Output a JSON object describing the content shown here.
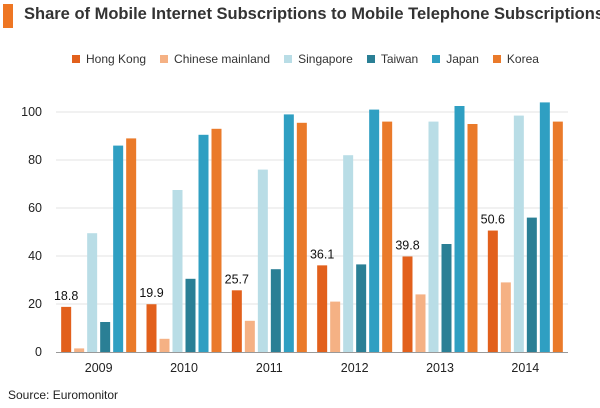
{
  "title": "Share of Mobile Internet Subscriptions to Mobile Telephone Subscriptions",
  "source": "Source: Euromonitor",
  "title_accent_color": "#ee7623",
  "chart_data": {
    "type": "bar",
    "title": "Share of Mobile Internet Subscriptions to Mobile Telephone Subscriptions",
    "categories": [
      "2009",
      "2010",
      "2011",
      "2012",
      "2013",
      "2014"
    ],
    "ylim": [
      0,
      110
    ],
    "yticks": [
      0,
      20,
      40,
      60,
      80,
      100
    ],
    "grid": "horizontal",
    "legend_position": "top",
    "series": [
      {
        "name": "Hong Kong",
        "color": "#e2601c",
        "values": [
          18.8,
          19.9,
          25.7,
          36.1,
          39.8,
          50.6
        ],
        "labels": [
          "18.8",
          "19.9",
          "25.7",
          "36.1",
          "39.8",
          "50.6"
        ]
      },
      {
        "name": "Chinese mainland",
        "color": "#f5b184",
        "values": [
          1.5,
          5.5,
          13,
          21,
          24,
          29
        ]
      },
      {
        "name": "Singapore",
        "color": "#b9dde6",
        "values": [
          49.5,
          67.5,
          76,
          82,
          96,
          98.5
        ]
      },
      {
        "name": "Taiwan",
        "color": "#2a7f95",
        "values": [
          12.5,
          30.5,
          34.5,
          36.5,
          45,
          56
        ]
      },
      {
        "name": "Japan",
        "color": "#2f9fc2",
        "values": [
          86,
          90.5,
          99,
          101,
          102.5,
          104
        ]
      },
      {
        "name": "Korea",
        "color": "#ea7a2a",
        "values": [
          89,
          93,
          95.5,
          96,
          95,
          96
        ]
      }
    ]
  }
}
